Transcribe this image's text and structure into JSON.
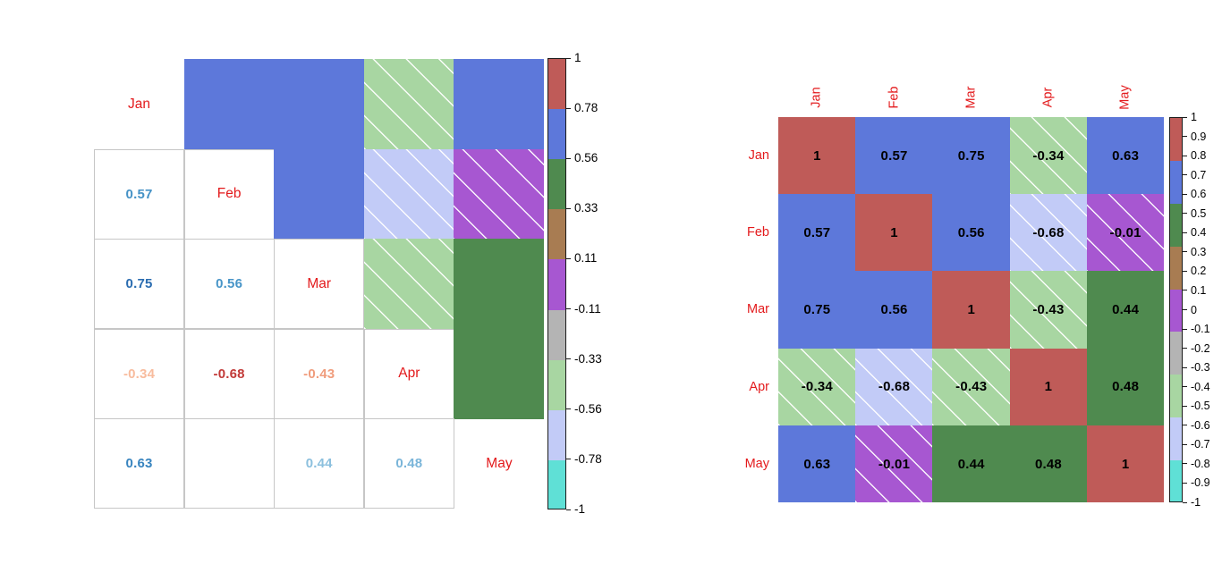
{
  "palette": {
    "colors": [
      "#bf5b58",
      "#5d78da",
      "#4f8a4f",
      "#a87c52",
      "#a757d1",
      "#b4b4b4",
      "#a8d6a2",
      "#c2cbf7",
      "#5fe0d6"
    ],
    "boundaries": [
      1,
      0.778,
      0.556,
      0.333,
      0.111,
      -0.111,
      -0.333,
      -0.556,
      -0.778,
      -1
    ]
  },
  "chart_data": [
    {
      "type": "heatmap",
      "variant": "corrplot-mixed (lower triangle: colored numbers, upper triangle: colored squares, diagonal: month labels)",
      "title": "",
      "categories": [
        "Jan",
        "Feb",
        "Mar",
        "Apr",
        "May"
      ],
      "matrix": [
        [
          1,
          0.57,
          0.75,
          -0.34,
          0.63
        ],
        [
          0.57,
          1,
          0.56,
          -0.68,
          -0.01
        ],
        [
          0.75,
          0.56,
          1,
          -0.43,
          0.44
        ],
        [
          -0.34,
          -0.68,
          -0.43,
          1,
          0.48
        ],
        [
          0.63,
          -0.01,
          0.44,
          0.48,
          1
        ]
      ],
      "colorbar_ticks": [
        1,
        0.78,
        0.56,
        0.33,
        0.11,
        -0.11,
        -0.33,
        -0.56,
        -0.78,
        -1
      ],
      "colorbar_range": [
        -1,
        1
      ],
      "negative_cells_hatched": true,
      "diagonal_label_color": "#e31a1c",
      "legend_position": "right"
    },
    {
      "type": "heatmap",
      "variant": "corrplot-full (all cells colored squares with bold black numbers)",
      "title": "",
      "categories": [
        "Jan",
        "Feb",
        "Mar",
        "Apr",
        "May"
      ],
      "matrix": [
        [
          1,
          0.57,
          0.75,
          -0.34,
          0.63
        ],
        [
          0.57,
          1,
          0.56,
          -0.68,
          -0.01
        ],
        [
          0.75,
          0.56,
          1,
          -0.43,
          0.44
        ],
        [
          -0.34,
          -0.68,
          -0.43,
          1,
          0.48
        ],
        [
          0.63,
          -0.01,
          0.44,
          0.48,
          1
        ]
      ],
      "colorbar_ticks": [
        1,
        0.9,
        0.8,
        0.7,
        0.6,
        0.5,
        0.4,
        0.3,
        0.2,
        0.1,
        0,
        -0.1,
        -0.2,
        -0.3,
        -0.4,
        -0.5,
        -0.6,
        -0.7,
        -0.8,
        -0.9,
        -1
      ],
      "colorbar_range": [
        -1,
        1
      ],
      "negative_cells_hatched": true,
      "label_color": "#e31a1c",
      "value_color": "#000000",
      "legend_position": "right"
    }
  ],
  "left_plot": {
    "grid_color": "#c6c6c6",
    "bordered_diagonal_indices": [
      1,
      2,
      3
    ],
    "lower_numbers": [
      {
        "row": 1,
        "col": 0,
        "text": "0.57",
        "color": "#4592c6"
      },
      {
        "row": 2,
        "col": 0,
        "text": "0.75",
        "color": "#2a6cb0"
      },
      {
        "row": 2,
        "col": 1,
        "text": "0.56",
        "color": "#4895c8"
      },
      {
        "row": 3,
        "col": 0,
        "text": "-0.34",
        "color": "#f8bc9e"
      },
      {
        "row": 3,
        "col": 1,
        "text": "-0.68",
        "color": "#c23a38"
      },
      {
        "row": 3,
        "col": 2,
        "text": "-0.43",
        "color": "#f09d7d"
      },
      {
        "row": 4,
        "col": 0,
        "text": "0.63",
        "color": "#3884bf"
      },
      {
        "row": 4,
        "col": 1,
        "text": "",
        "color": "#fefefe"
      },
      {
        "row": 4,
        "col": 2,
        "text": "0.44",
        "color": "#8cc0de"
      },
      {
        "row": 4,
        "col": 3,
        "text": "0.48",
        "color": "#7ab5d9"
      }
    ]
  }
}
